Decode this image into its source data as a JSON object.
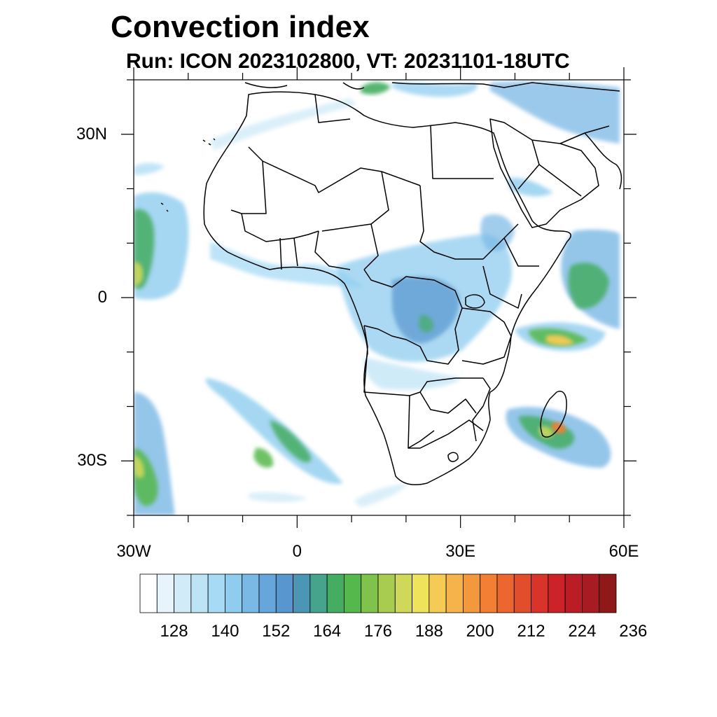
{
  "title": "Convection index",
  "subtitle": "Run: ICON 2023102800,  VT: 20231101-18UTC",
  "map": {
    "lon_range": [
      -30,
      60
    ],
    "lat_range": [
      -40,
      40
    ],
    "lat_ticks": [
      {
        "label": "30N",
        "lat": 30
      },
      {
        "label": "0",
        "lat": 0
      },
      {
        "label": "30S",
        "lat": -30
      }
    ],
    "lon_ticks": [
      {
        "label": "30W",
        "lon": -30
      },
      {
        "label": "0",
        "lon": 0
      },
      {
        "label": "30E",
        "lon": 30
      },
      {
        "label": "60E",
        "lon": 60
      }
    ]
  },
  "colorbar": {
    "colors": [
      "#ffffff",
      "#e8f4fc",
      "#d2ebf8",
      "#bde3f6",
      "#a6daf5",
      "#8fcdef",
      "#7ab8e5",
      "#67a6dc",
      "#5796cf",
      "#4b96b4",
      "#46a48c",
      "#45ad62",
      "#55b84c",
      "#7fc24c",
      "#a8cc50",
      "#d0d85a",
      "#f0e35c",
      "#f6cb55",
      "#f6b34c",
      "#f4983d",
      "#f27f34",
      "#ec6630",
      "#e24d2b",
      "#d9342a",
      "#cc2329",
      "#bb1d26",
      "#a81b22",
      "#8f1818"
    ],
    "labels": [
      "128",
      "140",
      "152",
      "164",
      "176",
      "188",
      "200",
      "212",
      "224",
      "236"
    ]
  }
}
